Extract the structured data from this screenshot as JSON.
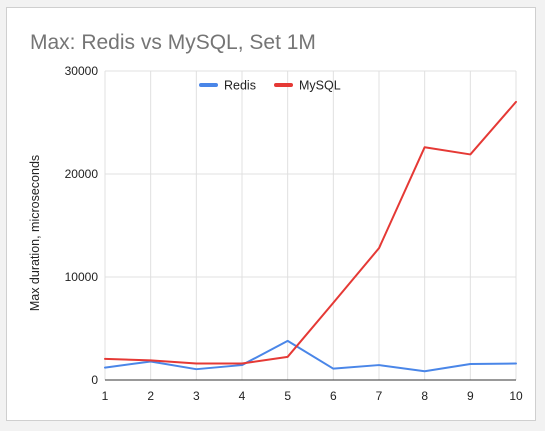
{
  "chart_data": {
    "type": "line",
    "title": "Max: Redis vs MySQL, Set 1M",
    "xlabel": "",
    "ylabel": "Max duration, microseconds",
    "x": [
      1,
      2,
      3,
      4,
      5,
      6,
      7,
      8,
      9,
      10
    ],
    "ylim": [
      0,
      30000
    ],
    "yticks": [
      0,
      10000,
      20000,
      30000
    ],
    "grid": true,
    "legend_position": "top",
    "series": [
      {
        "name": "Redis",
        "color": "#4a86e8",
        "values": [
          1200,
          1800,
          1050,
          1450,
          3800,
          1100,
          1450,
          850,
          1550,
          1600
        ]
      },
      {
        "name": "MySQL",
        "color": "#e53935",
        "values": [
          2050,
          1900,
          1600,
          1600,
          2250,
          7500,
          12800,
          22600,
          21900,
          27000
        ]
      }
    ]
  }
}
